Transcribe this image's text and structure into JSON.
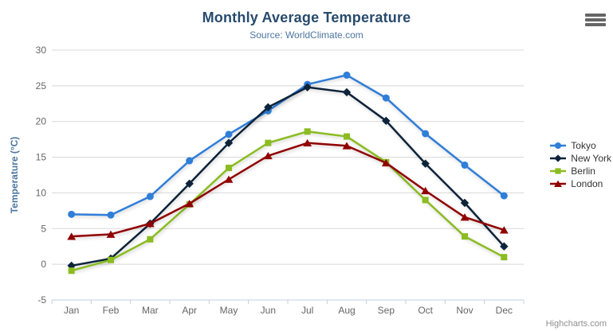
{
  "credits": {
    "label": "Highcharts.com"
  },
  "icons": {
    "context_menu": "hamburger-menu-icon"
  },
  "colors": {
    "background": "#ffffff",
    "title": "#274b6d",
    "subtitle": "#4d759e",
    "axis_label": "#666666",
    "axis_title": "#4d759e",
    "grid": "#d8d8d8",
    "axis_line": "#c0d0e0",
    "legend_text": "#333333",
    "credits": "#909090",
    "menu_icon": "#666666"
  },
  "chart_data": {
    "type": "line",
    "title": "Monthly Average Temperature",
    "subtitle": "Source: WorldClimate.com",
    "xlabel": "",
    "ylabel": "Temperature (°C)",
    "ylim": [
      -5,
      30
    ],
    "yticks": [
      -5,
      0,
      5,
      10,
      15,
      20,
      25,
      30
    ],
    "grid": true,
    "legend_position": "right",
    "categories": [
      "Jan",
      "Feb",
      "Mar",
      "Apr",
      "May",
      "Jun",
      "Jul",
      "Aug",
      "Sep",
      "Oct",
      "Nov",
      "Dec"
    ],
    "series": [
      {
        "name": "Tokyo",
        "color": "#2f7ed8",
        "marker": "circle",
        "values": [
          7.0,
          6.9,
          9.5,
          14.5,
          18.2,
          21.5,
          25.2,
          26.5,
          23.3,
          18.3,
          13.9,
          9.6
        ]
      },
      {
        "name": "New York",
        "color": "#0d233a",
        "marker": "diamond",
        "values": [
          -0.2,
          0.8,
          5.7,
          11.3,
          17.0,
          22.0,
          24.8,
          24.1,
          20.1,
          14.1,
          8.6,
          2.5
        ]
      },
      {
        "name": "Berlin",
        "color": "#8bbc21",
        "marker": "square",
        "values": [
          -0.9,
          0.6,
          3.5,
          8.4,
          13.5,
          17.0,
          18.6,
          17.9,
          14.3,
          9.0,
          3.9,
          1.0
        ]
      },
      {
        "name": "London",
        "color": "#910000",
        "marker": "triangle",
        "values": [
          3.9,
          4.2,
          5.7,
          8.5,
          11.9,
          15.2,
          17.0,
          16.6,
          14.2,
          10.3,
          6.6,
          4.8
        ]
      }
    ]
  }
}
